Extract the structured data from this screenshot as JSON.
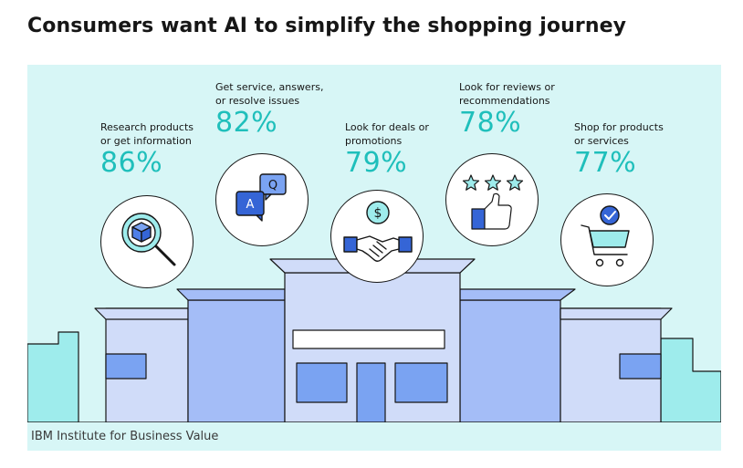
{
  "title": "Consumers want AI to simplify the shopping journey",
  "footer": "IBM Institute for Business Value",
  "stats": [
    {
      "line1": "Research products",
      "line2": "or get information",
      "value": "86%",
      "icon": "cube-magnifier-icon"
    },
    {
      "line1": "Get service, answers,",
      "line2": "or resolve issues",
      "value": "82%",
      "icon": "chat-bubbles-icon"
    },
    {
      "line1": "Look for deals or",
      "line2": "promotions",
      "value": "79%",
      "icon": "handshake-dollar-icon"
    },
    {
      "line1": "Look for reviews or",
      "line2": "recommendations",
      "value": "78%",
      "icon": "stars-thumbs-up-icon"
    },
    {
      "line1": "Shop for products",
      "line2": "or services",
      "value": "77%",
      "icon": "shopping-cart-icon"
    }
  ],
  "chat_letters": {
    "question": "Q",
    "answer": "A"
  },
  "dollar_sign": "$",
  "colors": {
    "accent": "#1fbfbb",
    "panel": "#d7f6f6",
    "building_light": "#d0dcf9",
    "building_dark": "#a4bdf7",
    "window": "#7aa3f2",
    "teal": "#9eecec"
  }
}
